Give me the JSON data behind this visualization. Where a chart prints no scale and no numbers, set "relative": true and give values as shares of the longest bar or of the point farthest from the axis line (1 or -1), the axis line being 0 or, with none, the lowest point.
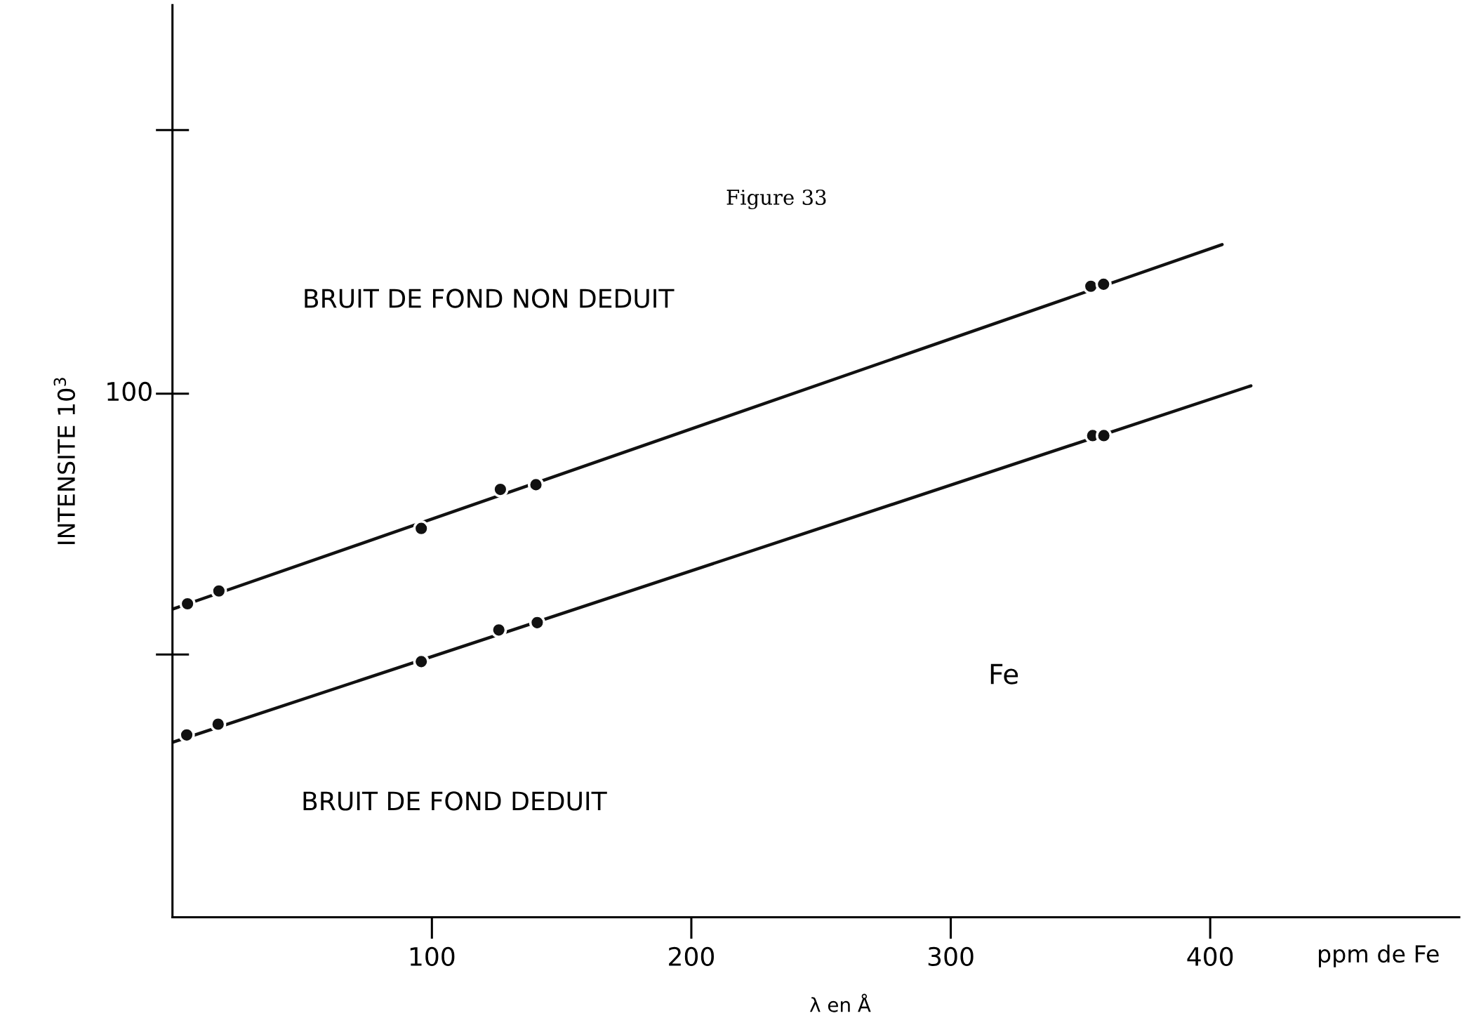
{
  "chart_data": {
    "type": "scatter",
    "relative": true,
    "xlabel": "ppm de Fe",
    "ylabel": "INTENSITE 10$^{3}$",
    "series": [
      {
        "color": "#111111",
        "x": [
          5.8,
          17.9,
          95.9,
          126.4,
          140.1,
          354,
          358.9
        ],
        "values": [
          0.466,
          0.485,
          0.578,
          0.636,
          0.643,
          0.938,
          0.941
        ]
      },
      {
        "color": "#111111",
        "x": [
          5.5,
          17.6,
          95.9,
          125.8,
          140.6,
          354.7,
          359
        ],
        "values": [
          0.271,
          0.287,
          0.38,
          0.427,
          0.438,
          0.716,
          0.716
        ]
      },
      {
        "type": "line",
        "marker": "none",
        "color": "#111111",
        "x": [
          0,
          404.6
        ],
        "values": [
          0.458,
          1.0
        ]
      },
      {
        "type": "line",
        "marker": "none",
        "color": "#111111",
        "x": [
          0,
          415.7
        ],
        "values": [
          0.26,
          0.79
        ]
      }
    ],
    "xlim": [
      0,
      496
    ],
    "xticks": [
      100,
      200,
      300,
      400
    ],
    "grid": false,
    "marker": "circle",
    "line_style": "solid",
    "annotations": [
      "Figure 33",
      "BRUIT DE FOND NON DEDUIT",
      "BRUIT DE FOND DEDUIT",
      "Fe",
      "λ en Å",
      "100"
    ]
  }
}
